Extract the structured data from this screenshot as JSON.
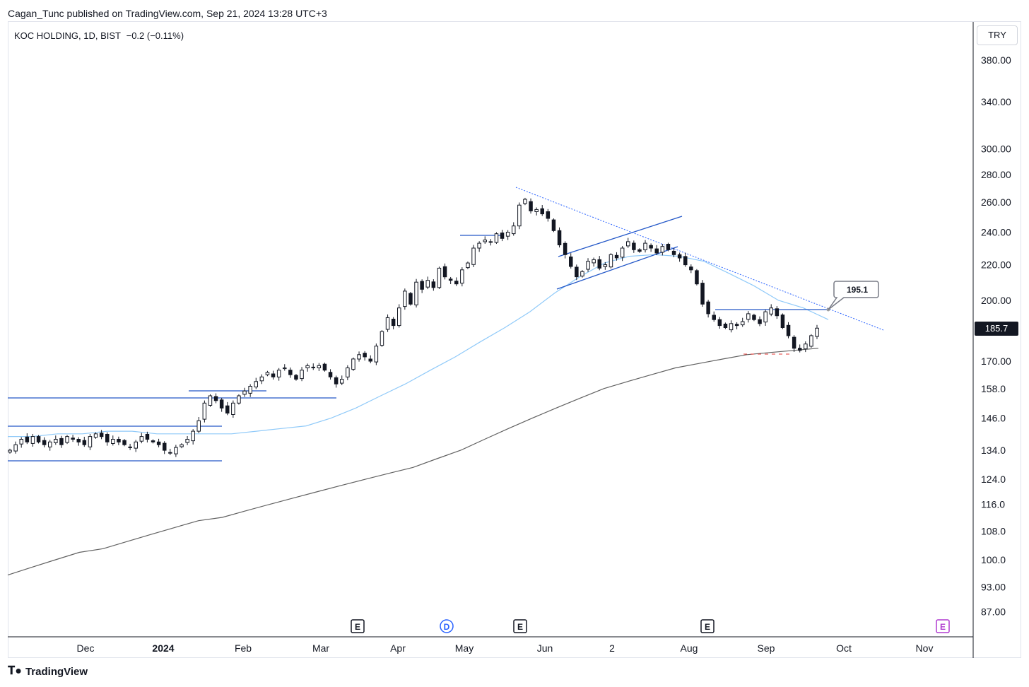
{
  "header": {
    "published": "Cagan_Tunc published on TradingView.com, Sep 21, 2024 13:28 UTC+3"
  },
  "symbol": {
    "name": "KOC HOLDING, 1D, BIST",
    "change": "−0.2 (−0.11%)"
  },
  "currency": "TRY",
  "logo_text": "TradingView",
  "chart_data": {
    "type": "candlestick",
    "title": "",
    "y_scale": "log",
    "y_ticks": [
      "380.00",
      "340.00",
      "300.00",
      "280.00",
      "260.00",
      "240.00",
      "220.00",
      "200.00",
      "170.00",
      "158.0",
      "146.0",
      "134.0",
      "124.0",
      "116.0",
      "108.0",
      "100.0",
      "93.00",
      "87.00"
    ],
    "y_tick_values": [
      380,
      340,
      300,
      280,
      260,
      240,
      220,
      200,
      170,
      158,
      146,
      134,
      124,
      116,
      108,
      100,
      93,
      87
    ],
    "x_ticks": [
      "Dec",
      "2024",
      "Feb",
      "Mar",
      "Apr",
      "May",
      "Jun",
      "2",
      "Aug",
      "Sep",
      "Oct",
      "Nov"
    ],
    "last_price": {
      "label": "185.7",
      "value": 185.7,
      "color": "#131722"
    },
    "callout": {
      "label": "195.1",
      "value": 195.1
    },
    "event_markers": [
      {
        "label": "E",
        "color": "#131722"
      },
      {
        "label": "D",
        "color": "#2962ff"
      },
      {
        "label": "E",
        "color": "#131722"
      },
      {
        "label": "E",
        "color": "#131722"
      },
      {
        "label": "E",
        "color": "#b03cd0"
      }
    ],
    "series": [
      {
        "name": "",
        "type": "moving-average",
        "color": "#90caf9"
      },
      {
        "name": "",
        "type": "moving-average",
        "color": "#616161"
      }
    ],
    "ma_fast_values": [
      139,
      139,
      140,
      140,
      141,
      141,
      140,
      140,
      140,
      140,
      141,
      142,
      143,
      146,
      150,
      155,
      160,
      166,
      172,
      179,
      186,
      194,
      204,
      213,
      221,
      225,
      226,
      225,
      222,
      215,
      208,
      200,
      196,
      190
    ],
    "ma_slow_values": [
      96,
      98,
      100,
      102,
      103,
      105,
      107,
      109,
      111,
      112,
      114,
      116,
      118,
      120,
      122,
      124,
      126,
      128,
      131,
      134,
      138,
      142,
      146,
      150,
      154,
      158,
      161,
      164,
      167,
      169,
      171,
      173,
      174,
      175,
      176
    ],
    "candle_closes": [
      134,
      136,
      138,
      137,
      139,
      137,
      136,
      137,
      138,
      136,
      139,
      138,
      137,
      136,
      139,
      140,
      139,
      137,
      138,
      137,
      136,
      135,
      137,
      139,
      138,
      137,
      136,
      134,
      133,
      135,
      136,
      138,
      141,
      145,
      152,
      155,
      153,
      150,
      148,
      152,
      155,
      157,
      159,
      161,
      163,
      165,
      163,
      166,
      167,
      164,
      162,
      166,
      168,
      167,
      168,
      166,
      163,
      160,
      162,
      167,
      171,
      173,
      172,
      170,
      177,
      184,
      191,
      187,
      196,
      205,
      198,
      210,
      206,
      211,
      207,
      218,
      213,
      211,
      209,
      217,
      221,
      230,
      233,
      235,
      234,
      239,
      236,
      240,
      244,
      258,
      262,
      254,
      255,
      252,
      249,
      241,
      232,
      226,
      219,
      213,
      216,
      222,
      223,
      218,
      220,
      226,
      224,
      230,
      234,
      229,
      228,
      233,
      230,
      227,
      231,
      229,
      226,
      224,
      220,
      217,
      209,
      198,
      193,
      190,
      187,
      186,
      188,
      187,
      189,
      193,
      190,
      188,
      194,
      196,
      192,
      186,
      182,
      176,
      175,
      178,
      182,
      185.7
    ]
  }
}
